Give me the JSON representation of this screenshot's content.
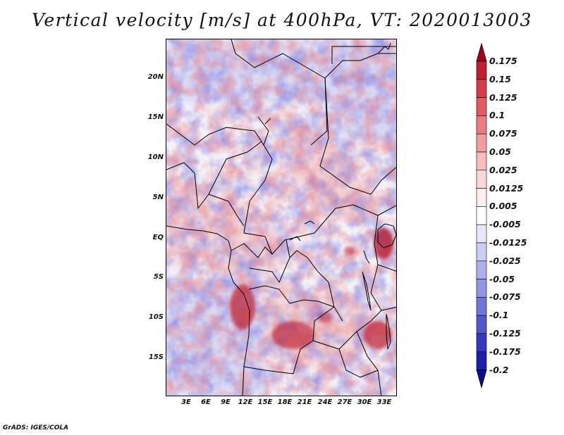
{
  "title": "Vertical velocity [m/s] at 400hPa, VT: 2020013003",
  "credit": "GrADS: IGES/COLA",
  "map": {
    "latitude_labels": [
      "20N",
      "15N",
      "10N",
      "5N",
      "EQ",
      "5S",
      "10S",
      "15S"
    ],
    "longitude_labels": [
      "3E",
      "6E",
      "9E",
      "12E",
      "15E",
      "18E",
      "21E",
      "24E",
      "27E",
      "30E",
      "33E"
    ],
    "hotspots": [
      {
        "name": "angola-coast",
        "intensity": "strong-positive"
      },
      {
        "name": "central-angola",
        "intensity": "strong-positive"
      },
      {
        "name": "lake-victoria",
        "intensity": "strong-positive"
      },
      {
        "name": "zambia-malawi",
        "intensity": "strong-positive"
      }
    ]
  },
  "colorbar": {
    "levels": [
      "0.175",
      "0.15",
      "0.125",
      "0.1",
      "0.075",
      "0.05",
      "0.025",
      "0.0125",
      "0.005",
      "-0.005",
      "-0.0125",
      "-0.025",
      "-0.05",
      "-0.075",
      "-0.1",
      "-0.125",
      "-0.175",
      "-0.2"
    ],
    "colors": [
      "#a0001c",
      "#be1e30",
      "#d43c48",
      "#e05a60",
      "#ea7c80",
      "#f29ea0",
      "#f7bcbd",
      "#fbd8d8",
      "#fdeeee",
      "#ffffff",
      "#e6e6f8",
      "#cccdf2",
      "#b0b1ec",
      "#9294e4",
      "#7174d8",
      "#5357cc",
      "#3438bc",
      "#1b1fa8",
      "#0a0e90"
    ],
    "top_arrow_color": "#a0001c",
    "bottom_arrow_color": "#0a0e90"
  }
}
